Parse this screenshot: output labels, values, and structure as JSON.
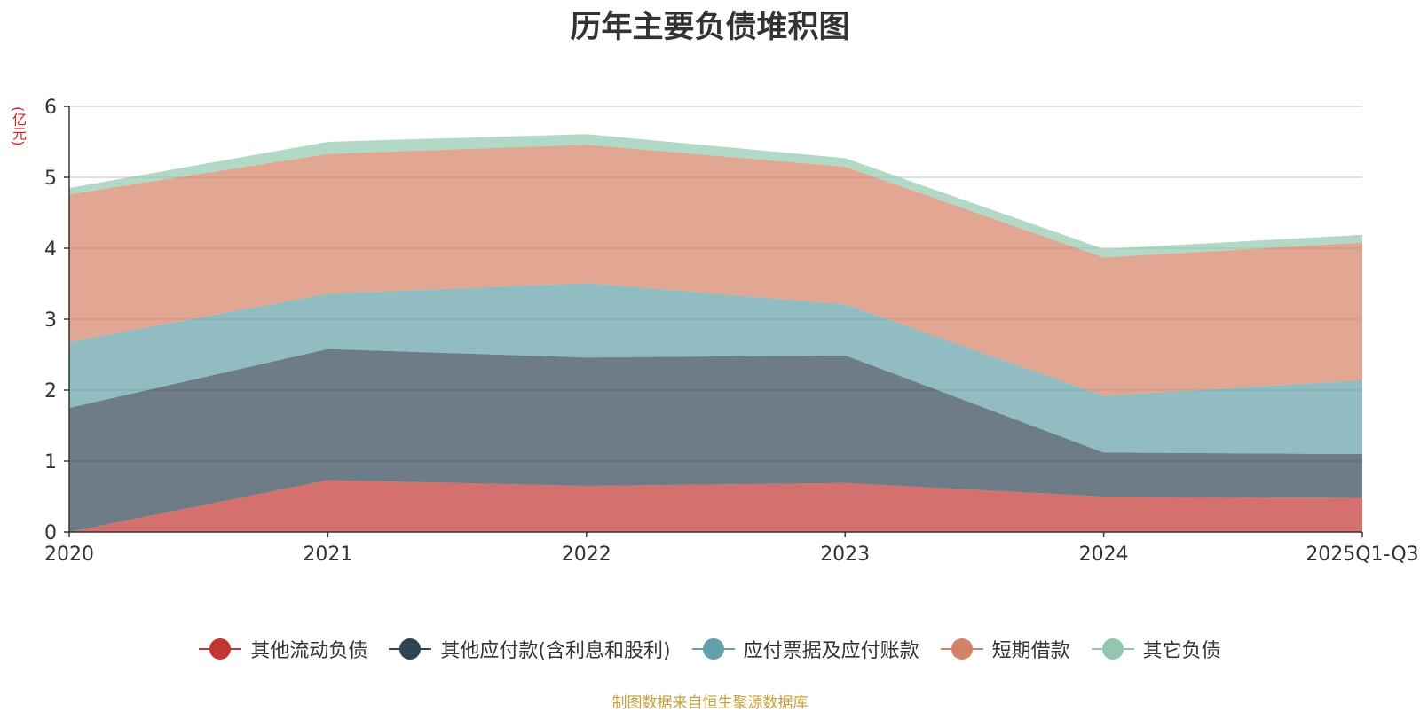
{
  "title": "历年主要负债堆积图",
  "unit": "(亿元)",
  "source": "制图数据来自恒生聚源数据库",
  "chart_data": {
    "type": "area",
    "stacked": true,
    "title": "历年主要负债堆积图",
    "ylabel": "(亿元)",
    "x": [
      "2020",
      "2021",
      "2022",
      "2023",
      "2024",
      "2025Q1-Q3"
    ],
    "ylim": [
      0,
      6
    ],
    "yticks": [
      0,
      1,
      2,
      3,
      4,
      5,
      6
    ],
    "grid": true,
    "legend": "bottom",
    "series": [
      {
        "name": "其他流动负债",
        "color": "#c23531",
        "values": [
          0.0,
          0.73,
          0.65,
          0.69,
          0.5,
          0.48
        ]
      },
      {
        "name": "其他应付款(含利息和股利)",
        "color": "#2f4554",
        "values": [
          1.75,
          1.85,
          1.81,
          1.8,
          0.62,
          0.62
        ]
      },
      {
        "name": "应付票据及应付账款",
        "color": "#61a0a8",
        "values": [
          0.93,
          0.78,
          1.05,
          0.72,
          0.8,
          1.04
        ]
      },
      {
        "name": "短期借款",
        "color": "#d48265",
        "values": [
          2.08,
          1.97,
          1.95,
          1.94,
          1.95,
          1.94
        ]
      },
      {
        "name": "其它负债",
        "color": "#91c7ae",
        "values": [
          0.09,
          0.17,
          0.15,
          0.12,
          0.12,
          0.11
        ]
      }
    ]
  }
}
